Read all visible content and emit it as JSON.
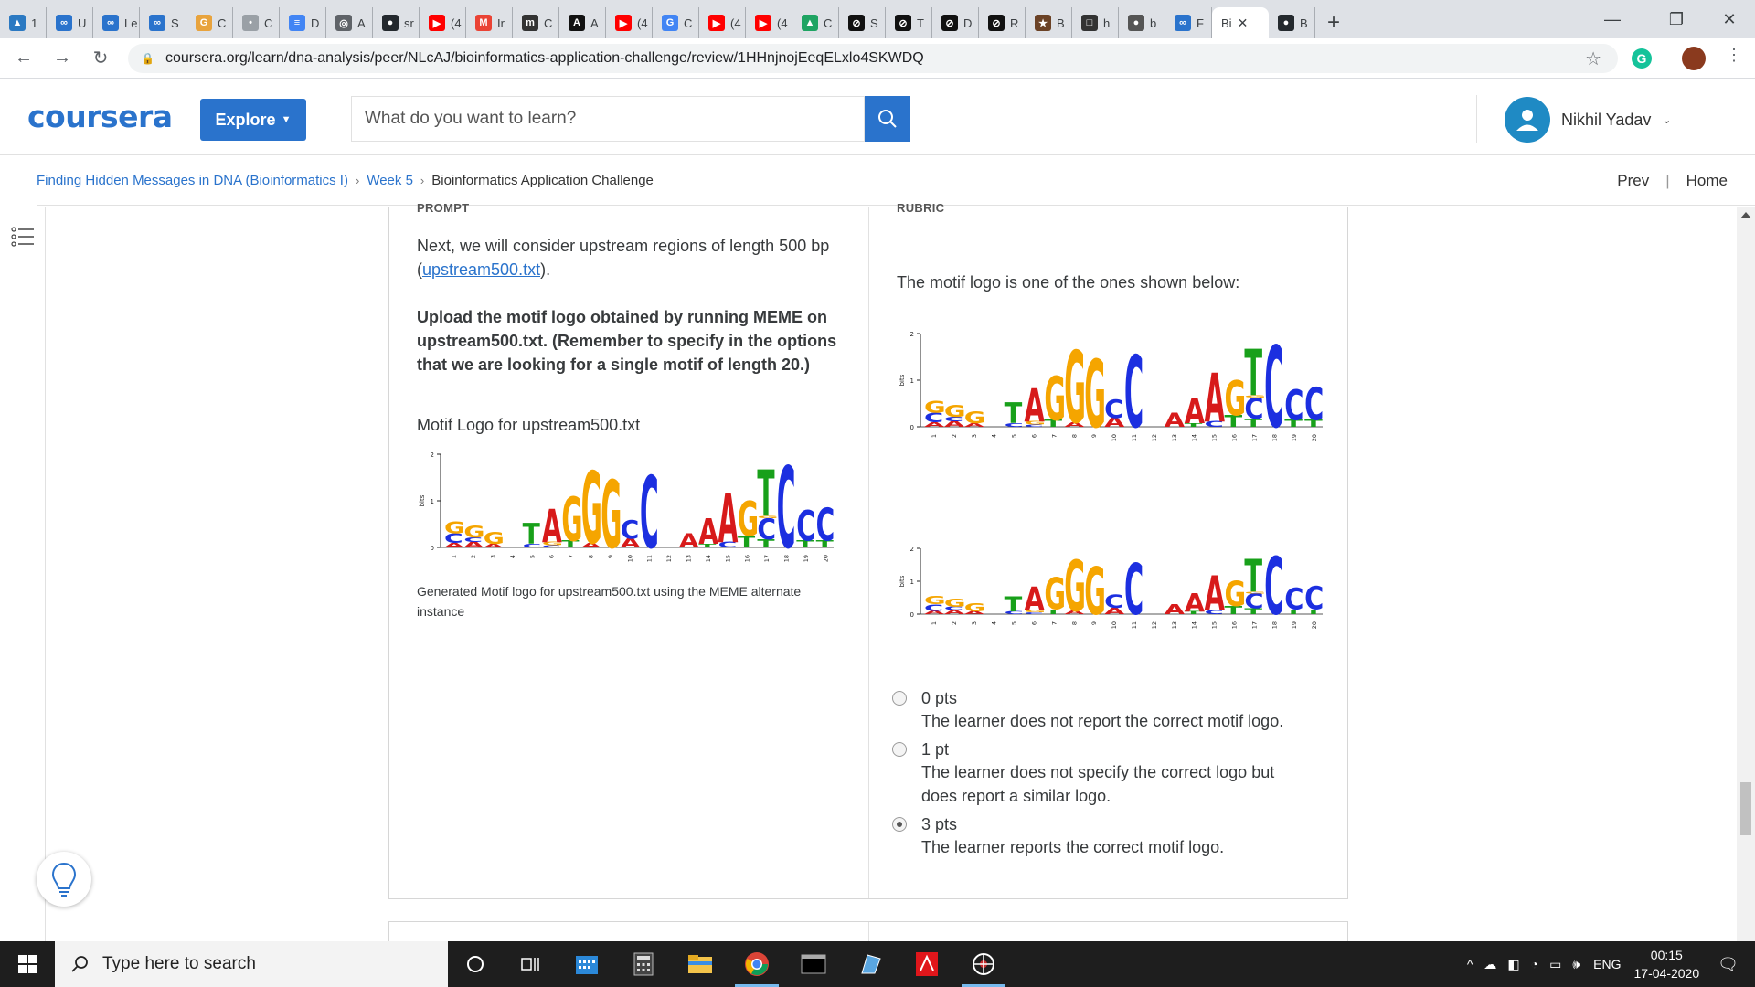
{
  "browser": {
    "tabs": [
      {
        "label": "1",
        "color": "#2b79c2",
        "glyph": "▲"
      },
      {
        "label": "U",
        "color": "#2a73cc",
        "glyph": "∞"
      },
      {
        "label": "Le",
        "color": "#2a73cc",
        "glyph": "∞"
      },
      {
        "label": "S",
        "color": "#2a73cc",
        "glyph": "∞"
      },
      {
        "label": "C",
        "color": "#e8a33d",
        "glyph": "G"
      },
      {
        "label": "C",
        "color": "#9aa0a6",
        "glyph": "•"
      },
      {
        "label": "D",
        "color": "#4285f4",
        "glyph": "≡"
      },
      {
        "label": "A",
        "color": "#5f6368",
        "glyph": "◎"
      },
      {
        "label": "sr",
        "color": "#24292e",
        "glyph": "●"
      },
      {
        "label": "(4",
        "color": "#ff0000",
        "glyph": "▶"
      },
      {
        "label": "Ir",
        "color": "#ea4335",
        "glyph": "M"
      },
      {
        "label": "C",
        "color": "#333333",
        "glyph": "m"
      },
      {
        "label": "A",
        "color": "#111111",
        "glyph": "A"
      },
      {
        "label": "(4",
        "color": "#ff0000",
        "glyph": "▶"
      },
      {
        "label": "C",
        "color": "#4285f4",
        "glyph": "G"
      },
      {
        "label": "(4",
        "color": "#ff0000",
        "glyph": "▶"
      },
      {
        "label": "(4",
        "color": "#ff0000",
        "glyph": "▶"
      },
      {
        "label": "C",
        "color": "#1fa463",
        "glyph": "▲"
      },
      {
        "label": "S",
        "color": "#111111",
        "glyph": "⊘"
      },
      {
        "label": "T",
        "color": "#111111",
        "glyph": "⊘"
      },
      {
        "label": "D",
        "color": "#111111",
        "glyph": "⊘"
      },
      {
        "label": "R",
        "color": "#111111",
        "glyph": "⊘"
      },
      {
        "label": "B",
        "color": "#6b4226",
        "glyph": "★"
      },
      {
        "label": "h",
        "color": "#333333",
        "glyph": "□"
      },
      {
        "label": "b",
        "color": "#555555",
        "glyph": "●"
      },
      {
        "label": "F",
        "color": "#2a73cc",
        "glyph": "∞"
      }
    ],
    "active_tab": {
      "label": "Bi",
      "close": "✕"
    },
    "last_tab": {
      "label": "B",
      "color": "#24292e",
      "glyph": "●"
    },
    "new_tab": "+",
    "minimize": "—",
    "restore": "❐",
    "close": "✕",
    "url": "coursera.org/learn/dna-analysis/peer/NLcAJ/bioinformatics-application-challenge/review/1HHnjnojEeqELxlo4SKWDQ"
  },
  "header": {
    "logo": "coursera",
    "explore": "Explore",
    "search_placeholder": "What do you want to learn?",
    "user_name": "Nikhil Yadav"
  },
  "breadcrumb": {
    "items": [
      "Finding Hidden Messages in DNA (Bioinformatics I)",
      "Week 5"
    ],
    "current": "Bioinformatics Application Challenge",
    "prev": "Prev",
    "home": "Home"
  },
  "prompt": {
    "heading": "PROMPT",
    "intro": "Next, we will consider upstream regions of length 500 bp (",
    "intro_link": "upstream500.txt",
    "intro_end": ").",
    "task": "Upload the motif logo obtained by running MEME on upstream500.txt. (Remember to specify in the options that we are looking for a single motif of length 20.)",
    "logo_title": "Motif Logo for upstream500.txt",
    "caption": "Generated Motif logo for upstream500.txt using the MEME alternate instance"
  },
  "rubric": {
    "heading": "RUBRIC",
    "intro": "The motif logo is one of the ones shown below:",
    "options": [
      {
        "pts": "0 pts",
        "desc": "The learner does not report the correct motif logo.",
        "selected": false
      },
      {
        "pts": "1 pt",
        "desc": "The learner does not specify the correct logo but does report a similar logo.",
        "selected": false
      },
      {
        "pts": "3 pts",
        "desc": "The learner reports the correct motif logo.",
        "selected": true
      }
    ]
  },
  "motif_logo": {
    "y_axis": {
      "label": "bits",
      "ticks": [
        "0",
        "1",
        "2"
      ]
    },
    "positions": [
      "1",
      "2",
      "3",
      "4",
      "5",
      "6",
      "7",
      "8",
      "9",
      "10",
      "11",
      "12",
      "13",
      "14",
      "15",
      "16",
      "17",
      "18",
      "19",
      "20"
    ],
    "columns": [
      [
        [
          "A",
          0.1
        ],
        [
          "C",
          0.2
        ],
        [
          "G",
          0.25
        ]
      ],
      [
        [
          "A",
          0.12
        ],
        [
          "C",
          0.1
        ],
        [
          "G",
          0.25
        ]
      ],
      [
        [
          "A",
          0.08
        ],
        [
          "G",
          0.25
        ]
      ],
      [],
      [
        [
          "C",
          0.08
        ],
        [
          "T",
          0.45
        ]
      ],
      [
        [
          "C",
          0.05
        ],
        [
          "G",
          0.07
        ],
        [
          "A",
          0.72
        ]
      ],
      [
        [
          "T",
          0.15
        ],
        [
          "G",
          0.95
        ]
      ],
      [
        [
          "A",
          0.1
        ],
        [
          "G",
          1.55
        ]
      ],
      [
        [
          "G",
          1.45
        ]
      ],
      [
        [
          "A",
          0.2
        ],
        [
          "C",
          0.4
        ]
      ],
      [
        [
          "C",
          1.55
        ]
      ],
      [],
      [
        [
          "A",
          0.3
        ]
      ],
      [
        [
          "T",
          0.08
        ],
        [
          "A",
          0.55
        ]
      ],
      [
        [
          "C",
          0.12
        ],
        [
          "A",
          1.05
        ]
      ],
      [
        [
          "T",
          0.25
        ],
        [
          "G",
          0.75
        ]
      ],
      [
        [
          "T",
          0.18
        ],
        [
          "C",
          0.45
        ],
        [
          "G",
          0.05
        ],
        [
          "T",
          1.0
        ]
      ],
      [
        [
          "C",
          1.75
        ]
      ],
      [
        [
          "T",
          0.15
        ],
        [
          "C",
          0.65
        ]
      ],
      [
        [
          "T",
          0.15
        ],
        [
          "C",
          0.7
        ]
      ]
    ],
    "colors": {
      "A": "#d71a1a",
      "C": "#1c2fe0",
      "G": "#f5a500",
      "T": "#18a01a"
    }
  },
  "taskbar": {
    "search_placeholder": "Type here to search",
    "language": "ENG",
    "time": "00:15",
    "date": "17-04-2020"
  }
}
